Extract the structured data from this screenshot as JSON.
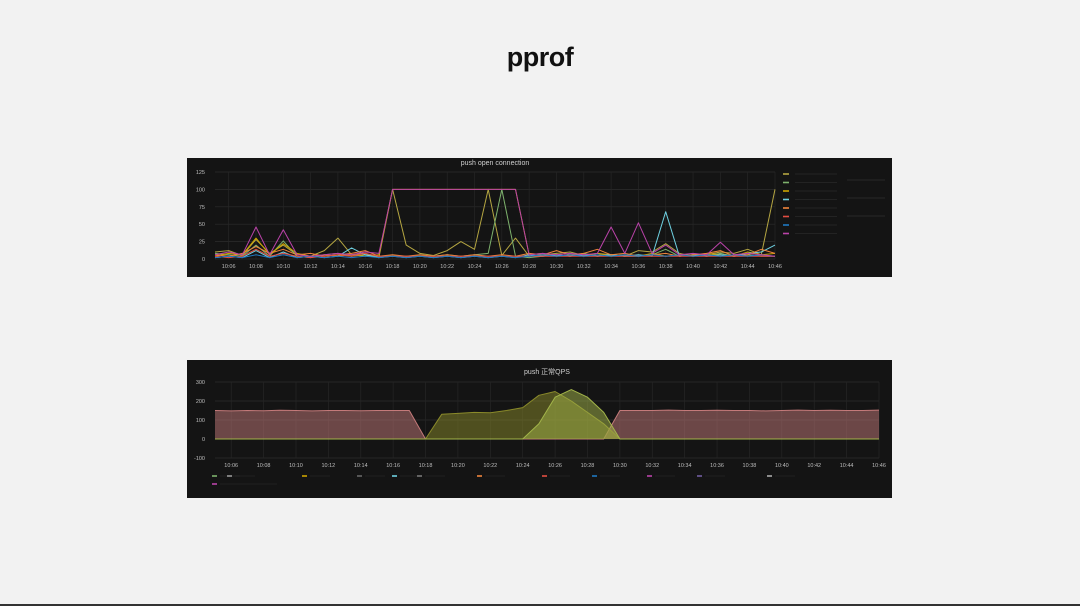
{
  "slide": {
    "title": "pprof"
  },
  "chart_data": [
    {
      "type": "line",
      "title": "push open connection",
      "xlabel": "",
      "ylabel": "",
      "x": [
        "10:05",
        "10:06",
        "10:07",
        "10:08",
        "10:09",
        "10:10",
        "10:11",
        "10:12",
        "10:13",
        "10:14",
        "10:15",
        "10:16",
        "10:17",
        "10:18",
        "10:19",
        "10:20",
        "10:21",
        "10:22",
        "10:23",
        "10:24",
        "10:25",
        "10:26",
        "10:27",
        "10:28",
        "10:29",
        "10:30",
        "10:31",
        "10:32",
        "10:33",
        "10:34",
        "10:35",
        "10:36",
        "10:37",
        "10:38",
        "10:39",
        "10:40",
        "10:41",
        "10:42",
        "10:43",
        "10:44",
        "10:45",
        "10:46"
      ],
      "x_ticks": [
        "10:06",
        "10:08",
        "10:10",
        "10:12",
        "10:14",
        "10:16",
        "10:18",
        "10:20",
        "10:22",
        "10:24",
        "10:26",
        "10:28",
        "10:30",
        "10:32",
        "10:34",
        "10:36",
        "10:38",
        "10:40",
        "10:42",
        "10:44",
        "10:46"
      ],
      "ylim": [
        0,
        125
      ],
      "y_ticks": [
        0,
        25,
        50,
        75,
        100,
        125
      ],
      "grid": true,
      "series": [
        {
          "color": "#b5a642",
          "values": [
            10,
            12,
            5,
            28,
            8,
            20,
            6,
            4,
            12,
            30,
            6,
            8,
            2,
            100,
            20,
            8,
            5,
            12,
            25,
            14,
            100,
            5,
            30,
            4,
            6,
            8,
            10,
            5,
            8,
            6,
            4,
            12,
            10,
            22,
            8,
            4,
            6,
            10,
            8,
            14,
            6,
            100
          ]
        },
        {
          "color": "#7eb26d",
          "values": [
            8,
            6,
            4,
            20,
            4,
            26,
            4,
            2,
            6,
            8,
            4,
            6,
            4,
            4,
            4,
            4,
            4,
            6,
            4,
            6,
            8,
            100,
            4,
            2,
            4,
            6,
            4,
            8,
            4,
            6,
            4,
            4,
            6,
            14,
            4,
            6,
            4,
            8,
            4,
            6,
            4,
            4
          ]
        },
        {
          "color": "#cca300",
          "values": [
            4,
            8,
            6,
            30,
            6,
            22,
            8,
            4,
            6,
            4,
            6,
            4,
            6,
            100,
            100,
            100,
            100,
            100,
            100,
            100,
            100,
            100,
            100,
            6,
            8,
            4,
            6,
            4,
            8,
            4,
            6,
            4,
            8,
            4,
            6,
            4,
            8,
            6,
            4,
            10,
            6,
            8
          ]
        },
        {
          "color": "#6ed0e0",
          "values": [
            2,
            4,
            2,
            12,
            2,
            10,
            2,
            4,
            2,
            4,
            16,
            6,
            2,
            4,
            2,
            4,
            2,
            4,
            2,
            4,
            2,
            4,
            2,
            6,
            4,
            6,
            4,
            6,
            4,
            6,
            4,
            6,
            4,
            68,
            4,
            6,
            4,
            6,
            4,
            8,
            10,
            20
          ]
        },
        {
          "color": "#ef843c",
          "values": [
            6,
            4,
            8,
            18,
            8,
            14,
            6,
            8,
            4,
            6,
            8,
            12,
            4,
            6,
            4,
            6,
            4,
            6,
            4,
            6,
            4,
            6,
            4,
            8,
            6,
            12,
            6,
            8,
            14,
            6,
            8,
            4,
            6,
            8,
            4,
            6,
            8,
            12,
            4,
            6,
            14,
            8
          ]
        },
        {
          "color": "#e24d42",
          "values": [
            4,
            2,
            4,
            14,
            4,
            8,
            4,
            2,
            4,
            6,
            4,
            8,
            4,
            4,
            4,
            4,
            4,
            4,
            4,
            4,
            4,
            4,
            4,
            4,
            4,
            4,
            4,
            4,
            4,
            4,
            4,
            4,
            4,
            4,
            4,
            4,
            4,
            4,
            4,
            4,
            4,
            4
          ]
        },
        {
          "color": "#1f78c1",
          "values": [
            2,
            4,
            2,
            6,
            2,
            6,
            2,
            4,
            2,
            4,
            2,
            4,
            2,
            4,
            2,
            4,
            2,
            4,
            2,
            4,
            2,
            4,
            2,
            4,
            6,
            4,
            6,
            4,
            6,
            4,
            6,
            4,
            6,
            4,
            6,
            4,
            6,
            4,
            6,
            4,
            6,
            4
          ]
        },
        {
          "color": "#ba43a9",
          "values": [
            6,
            10,
            6,
            46,
            6,
            42,
            6,
            4,
            6,
            8,
            6,
            10,
            8,
            100,
            100,
            100,
            100,
            100,
            100,
            100,
            100,
            100,
            100,
            6,
            8,
            6,
            8,
            6,
            8,
            46,
            8,
            52,
            8,
            20,
            6,
            8,
            6,
            24,
            6,
            8,
            6,
            4
          ]
        }
      ]
    },
    {
      "type": "area",
      "title": "push 正常QPS",
      "xlabel": "",
      "ylabel": "",
      "x": [
        "10:05",
        "10:06",
        "10:07",
        "10:08",
        "10:09",
        "10:10",
        "10:11",
        "10:12",
        "10:13",
        "10:14",
        "10:15",
        "10:16",
        "10:17",
        "10:18",
        "10:19",
        "10:20",
        "10:21",
        "10:22",
        "10:23",
        "10:24",
        "10:25",
        "10:26",
        "10:27",
        "10:28",
        "10:29",
        "10:30",
        "10:31",
        "10:32",
        "10:33",
        "10:34",
        "10:35",
        "10:36",
        "10:37",
        "10:38",
        "10:39",
        "10:40",
        "10:41",
        "10:42",
        "10:43",
        "10:44",
        "10:45",
        "10:46"
      ],
      "x_ticks": [
        "10:06",
        "10:08",
        "10:10",
        "10:12",
        "10:14",
        "10:16",
        "10:18",
        "10:20",
        "10:22",
        "10:24",
        "10:26",
        "10:28",
        "10:30",
        "10:32",
        "10:34",
        "10:36",
        "10:38",
        "10:40",
        "10:42",
        "10:44",
        "10:46"
      ],
      "ylim": [
        -100,
        300
      ],
      "y_ticks": [
        -100,
        0,
        100,
        200,
        300
      ],
      "grid": true,
      "series": [
        {
          "color": "#c47a7a",
          "values": [
            150,
            148,
            150,
            149,
            151,
            150,
            148,
            150,
            150,
            149,
            150,
            150,
            150,
            0,
            0,
            0,
            0,
            0,
            0,
            0,
            0,
            0,
            0,
            0,
            0,
            150,
            150,
            150,
            152,
            150,
            150,
            151,
            150,
            150,
            148,
            150,
            152,
            150,
            151,
            150,
            150,
            152
          ]
        },
        {
          "color": "#8a8a2a",
          "values": [
            0,
            0,
            0,
            0,
            0,
            0,
            0,
            0,
            0,
            0,
            0,
            0,
            0,
            0,
            130,
            135,
            140,
            138,
            150,
            165,
            230,
            250,
            200,
            140,
            80,
            0,
            0,
            0,
            0,
            0,
            0,
            0,
            0,
            0,
            0,
            0,
            0,
            0,
            0,
            0,
            0,
            0
          ]
        },
        {
          "color": "#a3b54a",
          "values": [
            0,
            0,
            0,
            0,
            0,
            0,
            0,
            0,
            0,
            0,
            0,
            0,
            0,
            0,
            0,
            0,
            0,
            0,
            0,
            0,
            80,
            220,
            260,
            220,
            140,
            0,
            0,
            0,
            0,
            0,
            0,
            0,
            0,
            0,
            0,
            0,
            0,
            0,
            0,
            0,
            0,
            0
          ]
        }
      ]
    }
  ]
}
